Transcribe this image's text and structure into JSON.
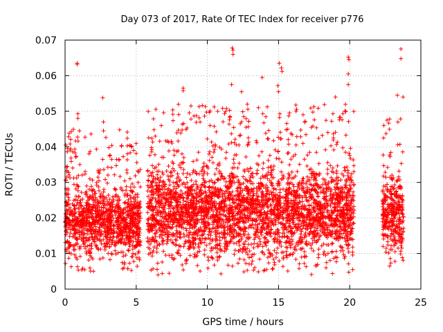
{
  "chart_data": {
    "type": "scatter",
    "title": "Day 073 of 2017, Rate Of TEC Index for receiver p776",
    "xlabel": "GPS time / hours",
    "ylabel": "ROTI / TECUs",
    "xlim": [
      0,
      25
    ],
    "ylim": [
      0,
      0.07
    ],
    "x_ticks": [
      0,
      5,
      10,
      15,
      20,
      25
    ],
    "x_tick_labels": [
      "0",
      "5",
      "10",
      "15",
      "20",
      "25"
    ],
    "y_ticks": [
      0,
      0.01,
      0.02,
      0.03,
      0.04,
      0.05,
      0.06,
      0.07
    ],
    "y_tick_labels": [
      "0",
      "0.01",
      "0.02",
      "0.03",
      "0.04",
      "0.05",
      "0.06",
      "0.07"
    ],
    "grid": true,
    "marker": "+",
    "color": "#ff0000",
    "series": [
      {
        "segments": [
          {
            "x_start": 0.0,
            "x_end": 5.3,
            "typical_range": [
              0.005,
              0.033
            ]
          },
          {
            "x_start": 5.8,
            "x_end": 20.3,
            "typical_range": [
              0.004,
              0.04
            ]
          },
          {
            "x_start": 22.3,
            "x_end": 23.8,
            "typical_range": [
              0.006,
              0.036
            ]
          }
        ],
        "highlights": [
          {
            "x": 0.05,
            "y": 0.0405
          },
          {
            "x": 0.85,
            "y": 0.0635
          },
          {
            "x": 0.85,
            "y": 0.0632
          },
          {
            "x": 0.9,
            "y": 0.0493
          },
          {
            "x": 0.9,
            "y": 0.048
          },
          {
            "x": 2.65,
            "y": 0.0538
          },
          {
            "x": 2.7,
            "y": 0.047
          },
          {
            "x": 2.7,
            "y": 0.0445
          },
          {
            "x": 8.3,
            "y": 0.0565
          },
          {
            "x": 8.3,
            "y": 0.0558
          },
          {
            "x": 8.85,
            "y": 0.0515
          },
          {
            "x": 11.75,
            "y": 0.0678
          },
          {
            "x": 11.8,
            "y": 0.0672
          },
          {
            "x": 11.8,
            "y": 0.066
          },
          {
            "x": 11.7,
            "y": 0.0575
          },
          {
            "x": 12.4,
            "y": 0.0555
          },
          {
            "x": 13.85,
            "y": 0.0595
          },
          {
            "x": 14.95,
            "y": 0.0572
          },
          {
            "x": 15.05,
            "y": 0.0635
          },
          {
            "x": 15.2,
            "y": 0.0622
          },
          {
            "x": 15.25,
            "y": 0.0612
          },
          {
            "x": 15.0,
            "y": 0.0555
          },
          {
            "x": 19.9,
            "y": 0.0652
          },
          {
            "x": 19.95,
            "y": 0.0645
          },
          {
            "x": 19.9,
            "y": 0.0605
          },
          {
            "x": 19.9,
            "y": 0.0575
          },
          {
            "x": 19.0,
            "y": 0.054
          },
          {
            "x": 23.6,
            "y": 0.0675
          },
          {
            "x": 23.6,
            "y": 0.0648
          },
          {
            "x": 23.35,
            "y": 0.0545
          },
          {
            "x": 23.75,
            "y": 0.054
          },
          {
            "x": 22.4,
            "y": 0.046
          }
        ]
      }
    ]
  }
}
